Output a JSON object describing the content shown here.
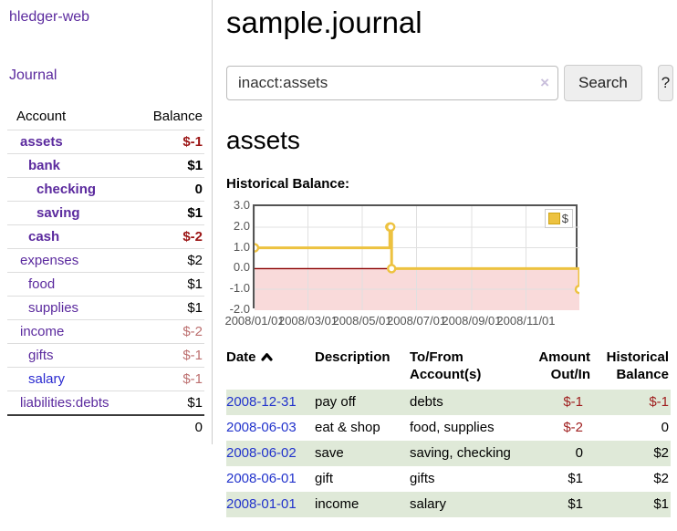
{
  "sidebar": {
    "app_title": "hledger-web",
    "nav_journal_label": "Journal",
    "accounts_header": {
      "account": "Account",
      "balance": "Balance"
    },
    "accounts": [
      {
        "name": "assets",
        "balance": "$-1",
        "indent": 1,
        "bold": true,
        "balance_style": "neg-strong",
        "link_color": "purple"
      },
      {
        "name": "bank",
        "balance": "$1",
        "indent": 2,
        "bold": true,
        "balance_style": "",
        "link_color": "purple"
      },
      {
        "name": "checking",
        "balance": "0",
        "indent": 3,
        "bold": true,
        "balance_style": "",
        "link_color": "purple"
      },
      {
        "name": "saving",
        "balance": "$1",
        "indent": 3,
        "bold": true,
        "balance_style": "",
        "link_color": "purple"
      },
      {
        "name": "cash",
        "balance": "$-2",
        "indent": 2,
        "bold": true,
        "balance_style": "neg-strong",
        "link_color": "purple"
      },
      {
        "name": "expenses",
        "balance": "$2",
        "indent": 1,
        "bold": false,
        "balance_style": "",
        "link_color": "purple"
      },
      {
        "name": "food",
        "balance": "$1",
        "indent": 2,
        "bold": false,
        "balance_style": "",
        "link_color": "purple"
      },
      {
        "name": "supplies",
        "balance": "$1",
        "indent": 2,
        "bold": false,
        "balance_style": "",
        "link_color": "purple"
      },
      {
        "name": "income",
        "balance": "$-2",
        "indent": 1,
        "bold": false,
        "balance_style": "neg-soft",
        "link_color": "purple"
      },
      {
        "name": "gifts",
        "balance": "$-1",
        "indent": 2,
        "bold": false,
        "balance_style": "neg-soft",
        "link_color": "purple"
      },
      {
        "name": "salary",
        "balance": "$-1",
        "indent": 2,
        "bold": false,
        "balance_style": "neg-soft",
        "link_color": "blue"
      },
      {
        "name": "liabilities:debts",
        "balance": "$1",
        "indent": 1,
        "bold": false,
        "balance_style": "",
        "link_color": "purple"
      }
    ],
    "total": "0"
  },
  "main": {
    "title": "sample.journal",
    "search": {
      "value": "inacct:assets",
      "clear_icon": "×",
      "button_label": "Search",
      "help_label": "?"
    },
    "account_heading": "assets",
    "chart_label": "Historical Balance:"
  },
  "chart_data": {
    "type": "line",
    "step": true,
    "title": "Historical Balance:",
    "legend_label": "$",
    "series_color": "#edc240",
    "marker_fill": "#ffffff",
    "grid_color": "#e0e0e0",
    "zero_line_color": "#8b0000",
    "negative_region_color": "#f9dada",
    "x_start": "2008-01-01",
    "x_end": "2008-12-31",
    "ylim": [
      -2,
      3
    ],
    "points": [
      {
        "date": "2008-01-01",
        "value": 1
      },
      {
        "date": "2008-06-01",
        "value": 2
      },
      {
        "date": "2008-06-02",
        "value": 2
      },
      {
        "date": "2008-06-03",
        "value": 0
      },
      {
        "date": "2008-12-31",
        "value": -1
      }
    ],
    "y_ticks": [
      {
        "label": "3.0",
        "value": 3
      },
      {
        "label": "2.0",
        "value": 2
      },
      {
        "label": "1.0",
        "value": 1
      },
      {
        "label": "0.0",
        "value": 0
      },
      {
        "label": "-1.0",
        "value": -1
      },
      {
        "label": "-2.0",
        "value": -2
      }
    ],
    "x_ticks": [
      {
        "label": "2008/01/01",
        "date": "2008-01-01"
      },
      {
        "label": "2008/03/01",
        "date": "2008-03-01"
      },
      {
        "label": "2008/05/01",
        "date": "2008-05-01"
      },
      {
        "label": "2008/07/01",
        "date": "2008-07-01"
      },
      {
        "label": "2008/09/01",
        "date": "2008-09-01"
      },
      {
        "label": "2008/11/01",
        "date": "2008-11-01"
      }
    ]
  },
  "table": {
    "headers": [
      {
        "line1": "Date",
        "line2": ""
      },
      {
        "line1": "Description",
        "line2": ""
      },
      {
        "line1": "To/From",
        "line2": "Account(s)"
      },
      {
        "line1": "Amount",
        "line2": "Out/In"
      },
      {
        "line1": "Historical",
        "line2": "Balance"
      }
    ],
    "rows": [
      {
        "date": "2008-12-31",
        "description": "pay off",
        "accounts": "debts",
        "amount": "$-1",
        "amount_negative": true,
        "balance": "$-1",
        "balance_negative": true,
        "green": true
      },
      {
        "date": "2008-06-03",
        "description": "eat & shop",
        "accounts": "food, supplies",
        "amount": "$-2",
        "amount_negative": true,
        "balance": "0",
        "balance_negative": false,
        "green": false
      },
      {
        "date": "2008-06-02",
        "description": "save",
        "accounts": "saving, checking",
        "amount": "0",
        "amount_negative": false,
        "balance": "$2",
        "balance_negative": false,
        "green": true
      },
      {
        "date": "2008-06-01",
        "description": "gift",
        "accounts": "gifts",
        "amount": "$1",
        "amount_negative": false,
        "balance": "$2",
        "balance_negative": false,
        "green": false
      },
      {
        "date": "2008-01-01",
        "description": "income",
        "accounts": "salary",
        "amount": "$1",
        "amount_negative": false,
        "balance": "$1",
        "balance_negative": false,
        "green": true
      }
    ]
  }
}
